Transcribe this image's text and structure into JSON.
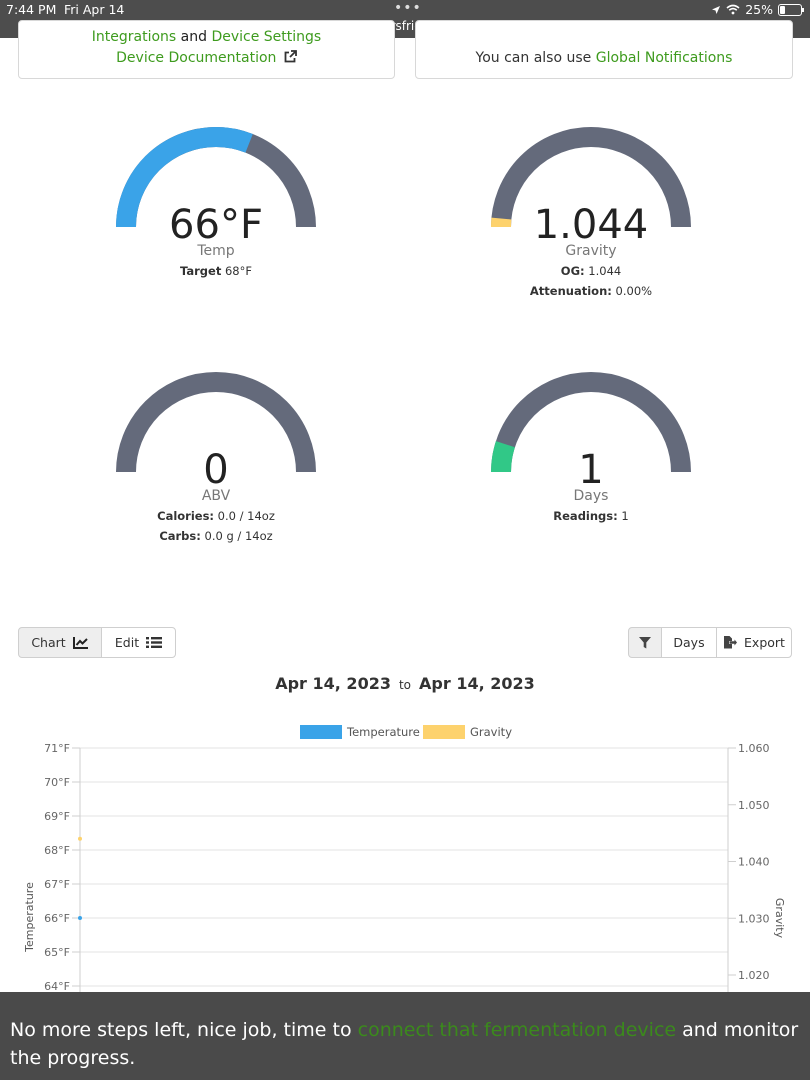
{
  "status_bar": {
    "time": "7:44 PM",
    "date": "Fri Apr 14",
    "dots": "•••",
    "url": "brewersfriend.com",
    "battery": "25%",
    "battery_level": 0.25
  },
  "top_cards": {
    "left": {
      "line1_a": "Integrations",
      "line1_b": " and ",
      "line1_c": "Device Settings",
      "line2": "Device Documentation"
    },
    "right": {
      "prefix": "You can also use ",
      "link": "Global Notifications"
    }
  },
  "gauges": {
    "temp": {
      "value": "66°F",
      "label": "Temp",
      "sub1_label": "Target",
      "sub1_value": " 68°F",
      "fill": 0.62,
      "color": "#3aa3e8"
    },
    "gravity": {
      "value": "1.044",
      "label": "Gravity",
      "sub1_label": "OG:",
      "sub1_value": " 1.044",
      "sub2_label": "Attenuation:",
      "sub2_value": " 0.00%",
      "fill": 0.03,
      "color": "#fdd26d"
    },
    "abv": {
      "value": "0",
      "label": "ABV",
      "sub1_label": "Calories:",
      "sub1_value": " 0.0 / 14oz",
      "sub2_label": "Carbs:",
      "sub2_value": " 0.0 g / 14oz",
      "fill": 0,
      "color": "#3ec88b"
    },
    "days": {
      "value": "1",
      "label": "Days",
      "sub1_label": "Readings:",
      "sub1_value": " 1",
      "fill": 0.1,
      "color": "#31c887"
    }
  },
  "toolbar": {
    "chart": "Chart",
    "edit": "Edit",
    "days": "Days",
    "export": "Export"
  },
  "date_range": {
    "from": "Apr 14, 2023",
    "to_word": "to",
    "to": "Apr 14, 2023"
  },
  "chart_data": {
    "type": "line",
    "series": [
      {
        "name": "Temperature",
        "color": "#3aa3e8",
        "axis": "left",
        "values": [
          66
        ]
      },
      {
        "name": "Gravity",
        "color": "#fdd26d",
        "axis": "right",
        "values": [
          1.044
        ]
      }
    ],
    "ylabel": "Temperature",
    "y2label": "Gravity",
    "yticks": [
      "71°F",
      "70°F",
      "69°F",
      "68°F",
      "67°F",
      "66°F",
      "65°F",
      "64°F"
    ],
    "y2ticks": [
      "1.060",
      "1.050",
      "1.040",
      "1.030",
      "1.020"
    ],
    "ylim": [
      64,
      71
    ],
    "y2lim": [
      1.02,
      1.06
    ],
    "grid": true,
    "legend": "top"
  },
  "overlay": {
    "before": "No more steps left, nice job, time to ",
    "link": "connect that fermentation device",
    "after": " and monitor the progress."
  }
}
